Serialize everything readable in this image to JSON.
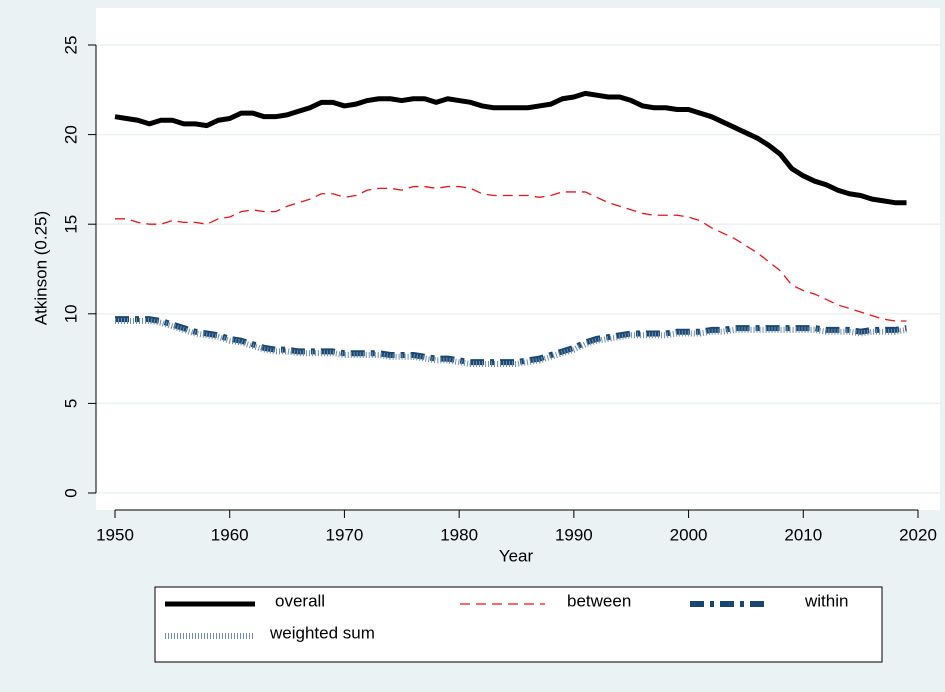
{
  "chart_data": {
    "type": "line",
    "xlabel": "Year",
    "ylabel": "Atkinson (0.25)",
    "x": [
      1950,
      1951,
      1952,
      1953,
      1954,
      1955,
      1956,
      1957,
      1958,
      1959,
      1960,
      1961,
      1962,
      1963,
      1964,
      1965,
      1966,
      1967,
      1968,
      1969,
      1970,
      1971,
      1972,
      1973,
      1974,
      1975,
      1976,
      1977,
      1978,
      1979,
      1980,
      1981,
      1982,
      1983,
      1984,
      1985,
      1986,
      1987,
      1988,
      1989,
      1990,
      1991,
      1992,
      1993,
      1994,
      1995,
      1996,
      1997,
      1998,
      1999,
      2000,
      2001,
      2002,
      2003,
      2004,
      2005,
      2006,
      2007,
      2008,
      2009,
      2010,
      2011,
      2012,
      2013,
      2014,
      2015,
      2016,
      2017,
      2018,
      2019
    ],
    "series": [
      {
        "name": "overall",
        "color": "#000000",
        "line_style": "solid",
        "values": [
          21.0,
          20.9,
          20.8,
          20.6,
          20.8,
          20.8,
          20.6,
          20.6,
          20.5,
          20.8,
          20.9,
          21.2,
          21.2,
          21.0,
          21.0,
          21.1,
          21.3,
          21.5,
          21.8,
          21.8,
          21.6,
          21.7,
          21.9,
          22.0,
          22.0,
          21.9,
          22.0,
          22.0,
          21.8,
          22.0,
          21.9,
          21.8,
          21.6,
          21.5,
          21.5,
          21.5,
          21.5,
          21.6,
          21.7,
          22.0,
          22.1,
          22.3,
          22.2,
          22.1,
          22.1,
          21.9,
          21.6,
          21.5,
          21.5,
          21.4,
          21.4,
          21.2,
          21.0,
          20.7,
          20.4,
          20.1,
          19.8,
          19.4,
          18.9,
          18.1,
          17.7,
          17.4,
          17.2,
          16.9,
          16.7,
          16.6,
          16.4,
          16.3,
          16.2,
          16.2
        ]
      },
      {
        "name": "between",
        "color": "#e8141c",
        "line_style": "dash",
        "values": [
          15.3,
          15.3,
          15.1,
          15.0,
          15.0,
          15.2,
          15.1,
          15.1,
          15.0,
          15.3,
          15.4,
          15.7,
          15.8,
          15.7,
          15.7,
          16.0,
          16.2,
          16.4,
          16.7,
          16.7,
          16.5,
          16.6,
          16.9,
          17.0,
          17.0,
          16.9,
          17.1,
          17.1,
          17.0,
          17.1,
          17.1,
          17.0,
          16.7,
          16.6,
          16.6,
          16.6,
          16.6,
          16.5,
          16.6,
          16.8,
          16.8,
          16.8,
          16.5,
          16.2,
          16.0,
          15.8,
          15.6,
          15.5,
          15.5,
          15.5,
          15.4,
          15.2,
          14.8,
          14.5,
          14.2,
          13.8,
          13.4,
          12.9,
          12.4,
          11.6,
          11.3,
          11.1,
          10.8,
          10.5,
          10.3,
          10.1,
          9.9,
          9.7,
          9.6,
          9.6
        ]
      },
      {
        "name": "within",
        "color": "#1a476f",
        "line_style": "dash-dot",
        "values": [
          9.7,
          9.7,
          9.7,
          9.7,
          9.6,
          9.4,
          9.2,
          9.0,
          8.9,
          8.8,
          8.6,
          8.5,
          8.3,
          8.1,
          8.0,
          8.0,
          7.9,
          7.9,
          7.9,
          7.9,
          7.8,
          7.8,
          7.8,
          7.8,
          7.7,
          7.7,
          7.7,
          7.6,
          7.5,
          7.5,
          7.4,
          7.3,
          7.3,
          7.3,
          7.3,
          7.3,
          7.4,
          7.5,
          7.7,
          7.9,
          8.1,
          8.4,
          8.6,
          8.7,
          8.8,
          8.9,
          8.9,
          8.9,
          8.9,
          9.0,
          9.0,
          9.0,
          9.1,
          9.1,
          9.2,
          9.2,
          9.2,
          9.2,
          9.2,
          9.2,
          9.2,
          9.2,
          9.1,
          9.1,
          9.1,
          9.0,
          9.1,
          9.1,
          9.1,
          9.2
        ]
      },
      {
        "name": "weighted sum",
        "color": "#6f8fb0",
        "line_style": "dot",
        "values": [
          9.6,
          9.6,
          9.6,
          9.6,
          9.5,
          9.3,
          9.1,
          8.9,
          8.8,
          8.7,
          8.5,
          8.4,
          8.2,
          8.0,
          7.9,
          7.9,
          7.8,
          7.8,
          7.8,
          7.8,
          7.7,
          7.7,
          7.7,
          7.7,
          7.6,
          7.6,
          7.6,
          7.5,
          7.4,
          7.4,
          7.3,
          7.2,
          7.2,
          7.2,
          7.2,
          7.2,
          7.3,
          7.4,
          7.6,
          7.8,
          8.0,
          8.3,
          8.5,
          8.6,
          8.7,
          8.8,
          8.8,
          8.8,
          8.8,
          8.9,
          8.9,
          8.9,
          9.0,
          9.0,
          9.1,
          9.1,
          9.1,
          9.1,
          9.1,
          9.1,
          9.1,
          9.1,
          9.0,
          9.0,
          9.0,
          8.9,
          9.0,
          9.0,
          9.0,
          9.1
        ]
      }
    ],
    "xlim": [
      1950,
      2020
    ],
    "xticks": [
      1950,
      1960,
      1970,
      1980,
      1990,
      2000,
      2010,
      2020
    ],
    "ylim": [
      0,
      25
    ],
    "yticks": [
      0,
      5,
      10,
      15,
      20,
      25
    ],
    "grid": true,
    "legend": "bottom"
  }
}
